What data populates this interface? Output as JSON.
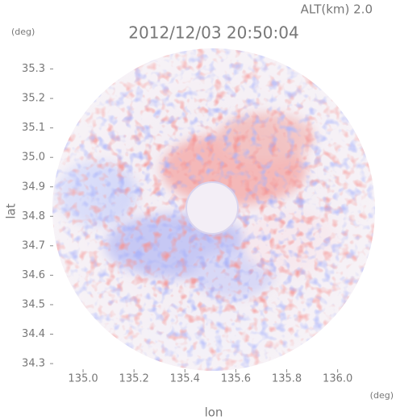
{
  "chart_data": {
    "type": "radar-image",
    "title": "2012/12/03 20:50:04",
    "subtitle": "ALT(km) 2.0",
    "y_unit": "(deg)",
    "x_unit": "(deg)",
    "y_label": "lat",
    "x_label": "lon",
    "xlim": [
      134.87,
      136.15
    ],
    "xticks": [
      {
        "value": 135,
        "label": "135.0"
      },
      135.2,
      135.4,
      135.6,
      135.8,
      {
        "value": 136,
        "label": "136.0"
      }
    ],
    "ylim": [
      34.27,
      35.37
    ],
    "yticks": [
      34.3,
      34.4,
      34.5,
      34.6,
      34.7,
      34.8,
      34.9,
      {
        "value": 35,
        "label": "35.0"
      },
      35.1,
      35.2,
      35.3
    ]
  }
}
